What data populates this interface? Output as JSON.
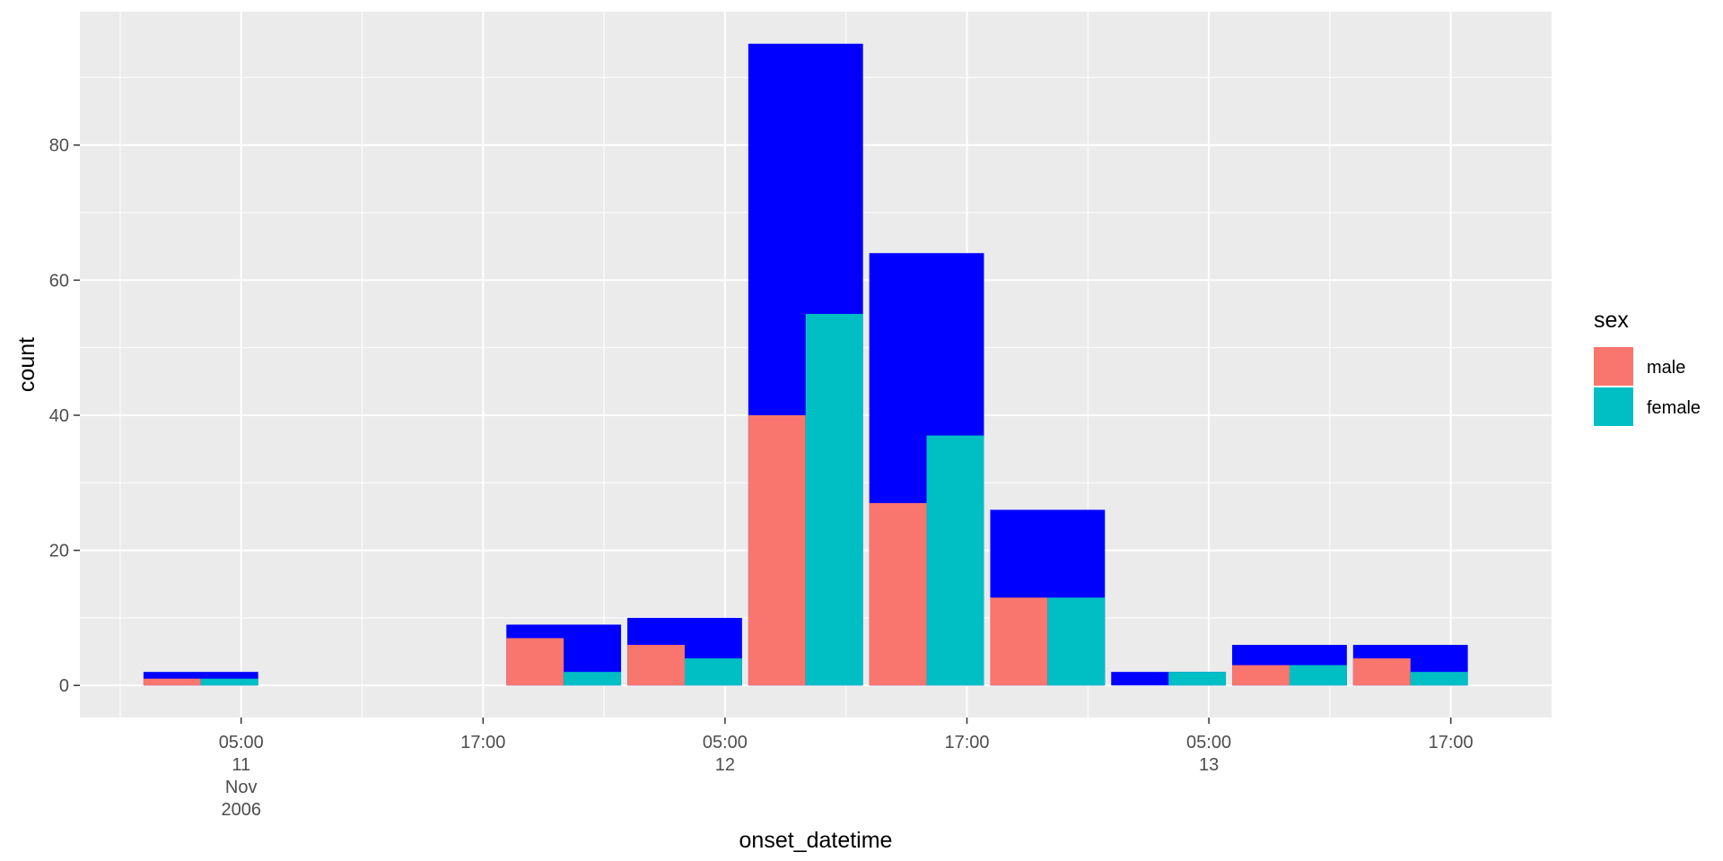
{
  "chart_data": {
    "type": "bar",
    "x_axis": {
      "label": "onset_datetime",
      "ticks": [
        {
          "value": "2006-11-11 05:00",
          "lines": [
            "05:00",
            "11",
            "Nov",
            "2006"
          ]
        },
        {
          "value": "2006-11-11 17:00",
          "lines": [
            "17:00"
          ]
        },
        {
          "value": "2006-11-12 05:00",
          "lines": [
            "05:00",
            "12"
          ]
        },
        {
          "value": "2006-11-12 17:00",
          "lines": [
            "17:00"
          ]
        },
        {
          "value": "2006-11-13 05:00",
          "lines": [
            "05:00",
            "13"
          ]
        },
        {
          "value": "2006-11-13 17:00",
          "lines": [
            "17:00"
          ]
        }
      ],
      "range": [
        "2006-11-10 21:00",
        "2006-11-13 22:00"
      ]
    },
    "y_axis": {
      "label": "count",
      "ticks": [
        0,
        20,
        40,
        60,
        80
      ],
      "range": [
        -4.75,
        99.75
      ]
    },
    "legend": {
      "title": "sex",
      "position": "right",
      "entries": [
        {
          "name": "male",
          "color": "#F8766D"
        },
        {
          "name": "female",
          "color": "#00BFC4"
        }
      ]
    },
    "total_bar_color": "#0000FF",
    "panel_background": "#EBEBEB",
    "grid": true,
    "bins": [
      {
        "start": "2006-11-11 00:00",
        "end": "2006-11-11 06:00",
        "total": 2,
        "male": 1,
        "female": 1
      },
      {
        "start": "2006-11-11 18:00",
        "end": "2006-11-12 00:00",
        "total": 9,
        "male": 7,
        "female": 2
      },
      {
        "start": "2006-11-12 00:00",
        "end": "2006-11-12 06:00",
        "total": 10,
        "male": 6,
        "female": 4
      },
      {
        "start": "2006-11-12 06:00",
        "end": "2006-11-12 12:00",
        "total": 95,
        "male": 40,
        "female": 55
      },
      {
        "start": "2006-11-12 12:00",
        "end": "2006-11-12 18:00",
        "total": 64,
        "male": 27,
        "female": 37
      },
      {
        "start": "2006-11-12 18:00",
        "end": "2006-11-13 00:00",
        "total": 26,
        "male": 13,
        "female": 13
      },
      {
        "start": "2006-11-13 00:00",
        "end": "2006-11-13 06:00",
        "total": 2,
        "male": 0,
        "female": 2
      },
      {
        "start": "2006-11-13 06:00",
        "end": "2006-11-13 12:00",
        "total": 6,
        "male": 3,
        "female": 3
      },
      {
        "start": "2006-11-13 12:00",
        "end": "2006-11-13 18:00",
        "total": 6,
        "male": 4,
        "female": 2
      }
    ]
  }
}
